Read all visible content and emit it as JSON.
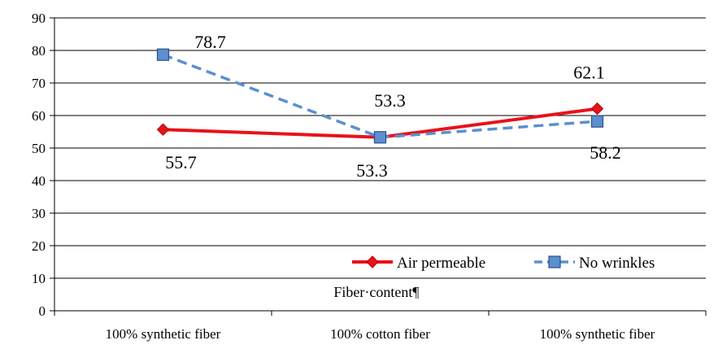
{
  "chart_data": {
    "type": "line",
    "title": "",
    "xlabel": "Fiber·content¶",
    "ylabel": "",
    "categories": [
      "100% synthetic fiber",
      "100% cotton fiber",
      "100% synthetic fiber"
    ],
    "ylim": [
      0,
      90
    ],
    "yticks": [
      0,
      10,
      20,
      30,
      40,
      50,
      60,
      70,
      80,
      90
    ],
    "grid": true,
    "legend_position": "bottom-right",
    "series": [
      {
        "name": "Air permeable",
        "values": [
          55.7,
          53.3,
          62.1
        ],
        "labels": [
          "55.7",
          "53.3",
          "62.1"
        ],
        "color": "#e8121a",
        "style": "solid",
        "marker": "diamond"
      },
      {
        "name": "No wrinkles",
        "values": [
          78.7,
          53.3,
          58.2
        ],
        "labels": [
          "78.7",
          "53.3",
          "58.2"
        ],
        "color": "#5b8fd0",
        "style": "dashed",
        "marker": "square"
      }
    ]
  }
}
